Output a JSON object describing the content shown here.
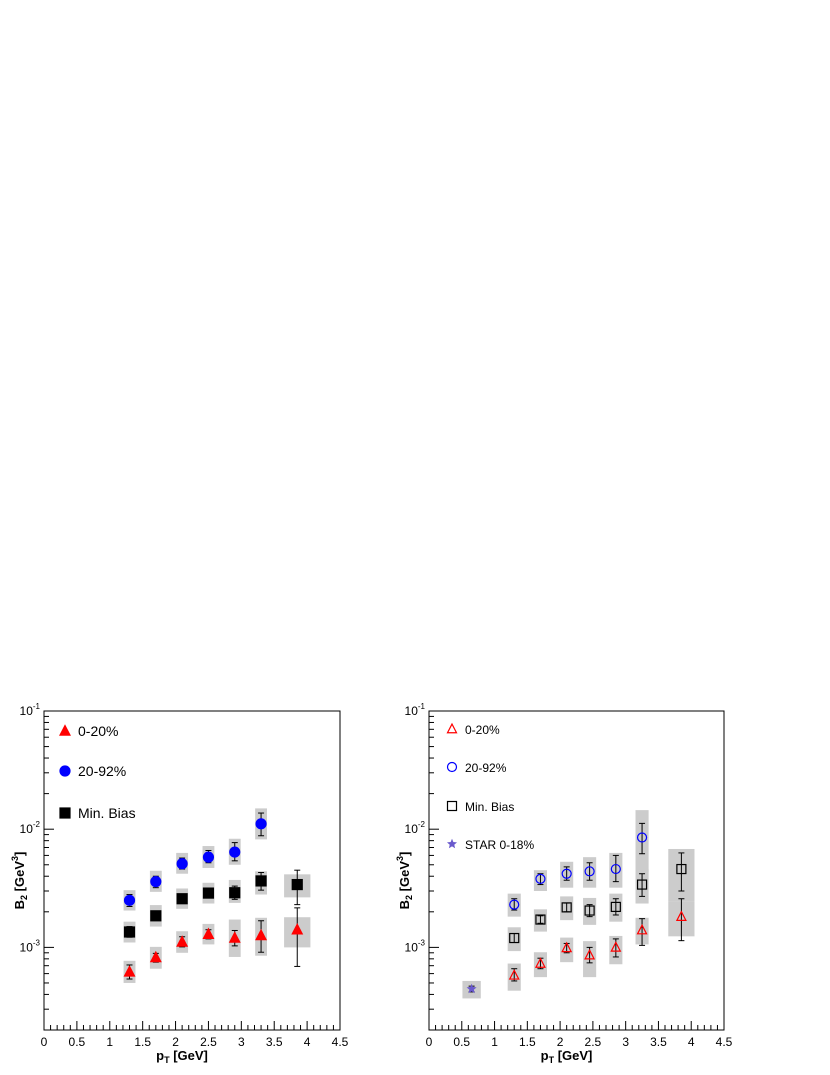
{
  "chart_data": [
    {
      "type": "scatter",
      "xlabel": "p_T [GeV]",
      "ylabel": "B_2 [GeV^3]",
      "xlim": [
        0,
        4.5
      ],
      "ylim": [
        0.0002,
        0.1
      ],
      "yscale": "log",
      "x_ticks": [
        "0",
        "0.5",
        "1",
        "1.5",
        "2",
        "2.5",
        "3",
        "3.5",
        "4",
        "4.5"
      ],
      "grid": false,
      "legend_position": "top-left",
      "series": [
        {
          "name": "0-20%",
          "marker": "filled-triangle",
          "color": "#ff0000",
          "points": [
            {
              "x": 1.3,
              "y": 0.00062,
              "err_lo": 0.00054,
              "err_hi": 0.00071,
              "sys_lo": 0.0005,
              "sys_hi": 0.00077,
              "sys_w": 0.18
            },
            {
              "x": 1.7,
              "y": 0.00082,
              "err_lo": 0.00075,
              "err_hi": 0.00089,
              "sys_lo": 0.00066,
              "sys_hi": 0.00101,
              "sys_w": 0.18
            },
            {
              "x": 2.1,
              "y": 0.00111,
              "err_lo": 0.00101,
              "err_hi": 0.00123,
              "sys_lo": 0.0009,
              "sys_hi": 0.00137,
              "sys_w": 0.18
            },
            {
              "x": 2.5,
              "y": 0.00129,
              "err_lo": 0.00118,
              "err_hi": 0.00141,
              "sys_lo": 0.00106,
              "sys_hi": 0.00158,
              "sys_w": 0.18
            },
            {
              "x": 2.9,
              "y": 0.0012,
              "err_lo": 0.00103,
              "err_hi": 0.00139,
              "sys_lo": 0.00083,
              "sys_hi": 0.00172,
              "sys_w": 0.18
            },
            {
              "x": 3.3,
              "y": 0.00126,
              "err_lo": 0.00091,
              "err_hi": 0.00168,
              "sys_lo": 0.00085,
              "sys_hi": 0.00178,
              "sys_w": 0.18
            },
            {
              "x": 3.85,
              "y": 0.00141,
              "err_lo": 0.00069,
              "err_hi": 0.00216,
              "sys_lo": 0.001,
              "sys_hi": 0.0018,
              "sys_w": 0.4
            }
          ]
        },
        {
          "name": "20-92%",
          "marker": "filled-circle",
          "color": "#0000ff",
          "points": [
            {
              "x": 1.3,
              "y": 0.0025,
              "err_lo": 0.00222,
              "err_hi": 0.0028,
              "sys_lo": 0.00205,
              "sys_hi": 0.00305,
              "sys_w": 0.18
            },
            {
              "x": 1.7,
              "y": 0.0036,
              "err_lo": 0.0032,
              "err_hi": 0.004,
              "sys_lo": 0.00295,
              "sys_hi": 0.00445,
              "sys_w": 0.18
            },
            {
              "x": 2.1,
              "y": 0.0051,
              "err_lo": 0.0046,
              "err_hi": 0.0057,
              "sys_lo": 0.0042,
              "sys_hi": 0.0063,
              "sys_w": 0.18
            },
            {
              "x": 2.5,
              "y": 0.0058,
              "err_lo": 0.0052,
              "err_hi": 0.0066,
              "sys_lo": 0.0047,
              "sys_hi": 0.0072,
              "sys_w": 0.18
            },
            {
              "x": 2.9,
              "y": 0.0064,
              "err_lo": 0.0054,
              "err_hi": 0.0077,
              "sys_lo": 0.005,
              "sys_hi": 0.0083,
              "sys_w": 0.18
            },
            {
              "x": 3.3,
              "y": 0.0111,
              "err_lo": 0.0088,
              "err_hi": 0.0137,
              "sys_lo": 0.0082,
              "sys_hi": 0.015,
              "sys_w": 0.18
            }
          ]
        },
        {
          "name": "Min. Bias",
          "marker": "filled-square",
          "color": "#000000",
          "points": [
            {
              "x": 1.3,
              "y": 0.00135,
              "err_lo": 0.00122,
              "err_hi": 0.0015,
              "sys_lo": 0.0011,
              "sys_hi": 0.00165,
              "sys_w": 0.18
            },
            {
              "x": 1.7,
              "y": 0.00185,
              "err_lo": 0.0017,
              "err_hi": 0.002,
              "sys_lo": 0.0015,
              "sys_hi": 0.00228,
              "sys_w": 0.18
            },
            {
              "x": 2.1,
              "y": 0.00258,
              "err_lo": 0.0024,
              "err_hi": 0.00278,
              "sys_lo": 0.00212,
              "sys_hi": 0.00315,
              "sys_w": 0.18
            },
            {
              "x": 2.5,
              "y": 0.00288,
              "err_lo": 0.00265,
              "err_hi": 0.00312,
              "sys_lo": 0.00235,
              "sys_hi": 0.00352,
              "sys_w": 0.18
            },
            {
              "x": 2.9,
              "y": 0.0029,
              "err_lo": 0.00255,
              "err_hi": 0.0033,
              "sys_lo": 0.00238,
              "sys_hi": 0.00372,
              "sys_w": 0.18
            },
            {
              "x": 3.3,
              "y": 0.00365,
              "err_lo": 0.00305,
              "err_hi": 0.0043,
              "sys_lo": 0.0028,
              "sys_hi": 0.0044,
              "sys_w": 0.18
            },
            {
              "x": 3.85,
              "y": 0.0034,
              "err_lo": 0.0023,
              "err_hi": 0.0045,
              "sys_lo": 0.00265,
              "sys_hi": 0.00415,
              "sys_w": 0.4
            }
          ]
        }
      ]
    },
    {
      "type": "scatter",
      "xlabel": "p_T [GeV]",
      "ylabel": "B_2 [GeV^3]",
      "xlim": [
        0,
        4.5
      ],
      "ylim": [
        0.0002,
        0.1
      ],
      "yscale": "log",
      "x_ticks": [
        "0",
        "0.5",
        "1",
        "1.5",
        "2",
        "2.5",
        "3",
        "3.5",
        "4",
        "4.5"
      ],
      "grid": false,
      "legend_position": "top-left",
      "series": [
        {
          "name": "0-20%",
          "marker": "open-triangle",
          "color": "#ff0000",
          "points": [
            {
              "x": 1.3,
              "y": 0.00058,
              "err_lo": 0.00052,
              "err_hi": 0.00066,
              "sys_lo": 0.00043,
              "sys_hi": 0.00073,
              "sys_w": 0.2
            },
            {
              "x": 1.7,
              "y": 0.00073,
              "err_lo": 0.00066,
              "err_hi": 0.00081,
              "sys_lo": 0.00056,
              "sys_hi": 0.00091,
              "sys_w": 0.2
            },
            {
              "x": 2.1,
              "y": 0.00099,
              "err_lo": 0.0009,
              "err_hi": 0.00108,
              "sys_lo": 0.00075,
              "sys_hi": 0.00121,
              "sys_w": 0.2
            },
            {
              "x": 2.45,
              "y": 0.00086,
              "err_lo": 0.00074,
              "err_hi": 0.001,
              "sys_lo": 0.00056,
              "sys_hi": 0.00113,
              "sys_w": 0.2
            },
            {
              "x": 2.85,
              "y": 0.001,
              "err_lo": 0.00083,
              "err_hi": 0.00118,
              "sys_lo": 0.00072,
              "sys_hi": 0.00125,
              "sys_w": 0.2
            },
            {
              "x": 3.25,
              "y": 0.0014,
              "err_lo": 0.00104,
              "err_hi": 0.00175,
              "sys_lo": 0.00106,
              "sys_hi": 0.00178,
              "sys_w": 0.2
            },
            {
              "x": 3.85,
              "y": 0.00182,
              "err_lo": 0.00114,
              "err_hi": 0.00258,
              "sys_lo": 0.00124,
              "sys_hi": 0.00245,
              "sys_w": 0.4
            }
          ]
        },
        {
          "name": "20-92%",
          "marker": "open-circle",
          "color": "#0000ff",
          "points": [
            {
              "x": 1.3,
              "y": 0.0023,
              "err_lo": 0.00207,
              "err_hi": 0.00258,
              "sys_lo": 0.00182,
              "sys_hi": 0.00285,
              "sys_w": 0.2
            },
            {
              "x": 1.7,
              "y": 0.0038,
              "err_lo": 0.0034,
              "err_hi": 0.0042,
              "sys_lo": 0.003,
              "sys_hi": 0.0045,
              "sys_w": 0.2
            },
            {
              "x": 2.1,
              "y": 0.0042,
              "err_lo": 0.0037,
              "err_hi": 0.0048,
              "sys_lo": 0.0032,
              "sys_hi": 0.0053,
              "sys_w": 0.2
            },
            {
              "x": 2.45,
              "y": 0.0044,
              "err_lo": 0.0037,
              "err_hi": 0.0052,
              "sys_lo": 0.0032,
              "sys_hi": 0.0058,
              "sys_w": 0.2
            },
            {
              "x": 2.85,
              "y": 0.0046,
              "err_lo": 0.0036,
              "err_hi": 0.006,
              "sys_lo": 0.0032,
              "sys_hi": 0.0063,
              "sys_w": 0.2
            },
            {
              "x": 3.25,
              "y": 0.0085,
              "err_lo": 0.0062,
              "err_hi": 0.0112,
              "sys_lo": 0.0043,
              "sys_hi": 0.0145,
              "sys_w": 0.2
            }
          ]
        },
        {
          "name": "Min. Bias",
          "marker": "open-square",
          "color": "#000000",
          "points": [
            {
              "x": 1.3,
              "y": 0.0012,
              "err_lo": 0.0011,
              "err_hi": 0.00131,
              "sys_lo": 0.00093,
              "sys_hi": 0.00148,
              "sys_w": 0.2
            },
            {
              "x": 1.7,
              "y": 0.00172,
              "err_lo": 0.0016,
              "err_hi": 0.00185,
              "sys_lo": 0.00136,
              "sys_hi": 0.0021,
              "sys_w": 0.2
            },
            {
              "x": 2.1,
              "y": 0.00218,
              "err_lo": 0.002,
              "err_hi": 0.00237,
              "sys_lo": 0.0017,
              "sys_hi": 0.0027,
              "sys_w": 0.2
            },
            {
              "x": 2.45,
              "y": 0.00205,
              "err_lo": 0.00182,
              "err_hi": 0.0023,
              "sys_lo": 0.00155,
              "sys_hi": 0.00262,
              "sys_w": 0.2
            },
            {
              "x": 2.85,
              "y": 0.0022,
              "err_lo": 0.00188,
              "err_hi": 0.00258,
              "sys_lo": 0.00165,
              "sys_hi": 0.00285,
              "sys_w": 0.2
            },
            {
              "x": 3.25,
              "y": 0.0034,
              "err_lo": 0.0027,
              "err_hi": 0.0042,
              "sys_lo": 0.00235,
              "sys_hi": 0.0046,
              "sys_w": 0.2
            },
            {
              "x": 3.85,
              "y": 0.0046,
              "err_lo": 0.003,
              "err_hi": 0.0063,
              "sys_lo": 0.00245,
              "sys_hi": 0.0068,
              "sys_w": 0.4
            }
          ]
        },
        {
          "name": "STAR 0-18%",
          "marker": "star",
          "color": "#6a5acd",
          "points": [
            {
              "x": 0.65,
              "y": 0.000445,
              "err_lo": 0.00042,
              "err_hi": 0.00047,
              "sys_lo": 0.00037,
              "sys_hi": 0.00052,
              "sys_w": 0.28
            }
          ]
        }
      ]
    }
  ]
}
